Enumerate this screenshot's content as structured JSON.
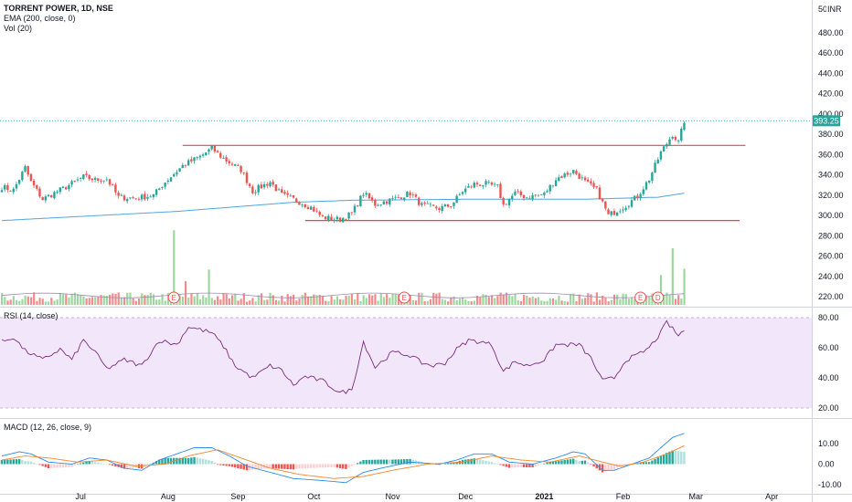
{
  "header": {
    "symbol_title": "TORRENT POWER, 1D, NSE",
    "ema_label": "EMA (200, close, 0)",
    "vol_label": "Vol (20)",
    "currency": "INR"
  },
  "rsi_pane": {
    "label": "RSI (14, close)"
  },
  "macd_pane": {
    "label": "MACD (12, 26, close, 9)"
  },
  "colors": {
    "up": "#26a69a",
    "down": "#ef5350",
    "vol_up": "#9fd6a0",
    "vol_down": "#f08c8c",
    "ema": "#4ea5e0",
    "support_resistance": "#e0475f",
    "rsi_line": "#7b2d7e",
    "rsi_band": "#f2e6fb",
    "macd_line": "#2e8be6",
    "signal_line": "#f4872b",
    "hist_up_strong": "#26a69a",
    "hist_up_weak": "#b2dfdb",
    "hist_down_strong": "#ef5350",
    "hist_down_weak": "#fccfd1",
    "price_tag": "#26a69a",
    "event_badge": "#ef5350"
  },
  "chart_data": [
    {
      "type": "candlestick",
      "title": "TORRENT POWER, 1D, NSE",
      "x_ticks": [
        "Jul",
        "Aug",
        "Sep",
        "Oct",
        "Nov",
        "Dec",
        "2021",
        "Feb",
        "Mar",
        "Apr"
      ],
      "y_ticks": [
        220.0,
        240.0,
        260.0,
        280.0,
        300.0,
        320.0,
        340.0,
        360.0,
        380.0,
        400.0,
        420.0,
        440.0,
        460.0,
        480.0
      ],
      "ylim": [
        212,
        505
      ],
      "last_price": "393.25",
      "close_path": [
        {
          "t": 0,
          "v": 328
        },
        {
          "t": 4,
          "v": 325
        },
        {
          "t": 8,
          "v": 347
        },
        {
          "t": 10,
          "v": 333
        },
        {
          "t": 14,
          "v": 316
        },
        {
          "t": 22,
          "v": 328
        },
        {
          "t": 28,
          "v": 338
        },
        {
          "t": 32,
          "v": 335
        },
        {
          "t": 36,
          "v": 336
        },
        {
          "t": 40,
          "v": 318
        },
        {
          "t": 46,
          "v": 317
        },
        {
          "t": 52,
          "v": 320
        },
        {
          "t": 56,
          "v": 333
        },
        {
          "t": 62,
          "v": 349
        },
        {
          "t": 68,
          "v": 358
        },
        {
          "t": 72,
          "v": 366
        },
        {
          "t": 76,
          "v": 356
        },
        {
          "t": 82,
          "v": 345
        },
        {
          "t": 86,
          "v": 324
        },
        {
          "t": 92,
          "v": 333
        },
        {
          "t": 96,
          "v": 320
        },
        {
          "t": 100,
          "v": 316
        },
        {
          "t": 106,
          "v": 308
        },
        {
          "t": 110,
          "v": 298
        },
        {
          "t": 116,
          "v": 296
        },
        {
          "t": 120,
          "v": 302
        },
        {
          "t": 124,
          "v": 322
        },
        {
          "t": 128,
          "v": 311
        },
        {
          "t": 134,
          "v": 316
        },
        {
          "t": 140,
          "v": 322
        },
        {
          "t": 144,
          "v": 310
        },
        {
          "t": 150,
          "v": 307
        },
        {
          "t": 154,
          "v": 310
        },
        {
          "t": 158,
          "v": 324
        },
        {
          "t": 162,
          "v": 331
        },
        {
          "t": 166,
          "v": 331
        },
        {
          "t": 170,
          "v": 328
        },
        {
          "t": 172,
          "v": 310
        },
        {
          "t": 176,
          "v": 322
        },
        {
          "t": 180,
          "v": 318
        },
        {
          "t": 186,
          "v": 321
        },
        {
          "t": 190,
          "v": 336
        },
        {
          "t": 196,
          "v": 344
        },
        {
          "t": 200,
          "v": 333
        },
        {
          "t": 204,
          "v": 325
        },
        {
          "t": 208,
          "v": 300
        },
        {
          "t": 214,
          "v": 310
        },
        {
          "t": 218,
          "v": 319
        },
        {
          "t": 222,
          "v": 336
        },
        {
          "t": 226,
          "v": 362
        },
        {
          "t": 230,
          "v": 380
        },
        {
          "t": 232,
          "v": 372
        },
        {
          "t": 234,
          "v": 393.25
        }
      ],
      "ema200_path": [
        {
          "t": 0,
          "v": 295
        },
        {
          "t": 60,
          "v": 304
        },
        {
          "t": 100,
          "v": 313
        },
        {
          "t": 120,
          "v": 315
        },
        {
          "t": 160,
          "v": 316
        },
        {
          "t": 200,
          "v": 316
        },
        {
          "t": 225,
          "v": 318
        },
        {
          "t": 234,
          "v": 322
        }
      ],
      "horizontal_levels": [
        {
          "value": 369,
          "t_from": 62,
          "t_to": 255
        },
        {
          "value": 295,
          "t_from": 104,
          "t_to": 253
        }
      ],
      "volume": {
        "spikes": [
          {
            "t": 59,
            "scale": 0.95
          },
          {
            "t": 230,
            "scale": 0.72
          },
          {
            "t": 226,
            "scale": 0.38
          },
          {
            "t": 234,
            "scale": 0.46
          },
          {
            "t": 71,
            "scale": 0.45
          },
          {
            "t": 63,
            "scale": 0.3
          }
        ]
      },
      "events": [
        {
          "t": 59,
          "label": "E"
        },
        {
          "t": 138,
          "label": "E"
        },
        {
          "t": 219,
          "label": "E"
        },
        {
          "t": 225,
          "label": "D"
        }
      ]
    },
    {
      "type": "line",
      "title": "RSI (14, close)",
      "y_ticks": [
        20.0,
        40.0,
        60.0,
        80.0
      ],
      "ylim": [
        20,
        80
      ],
      "band": [
        20,
        80
      ],
      "series": [
        {
          "path": [
            {
              "t": 0,
              "v": 64
            },
            {
              "t": 4,
              "v": 67
            },
            {
              "t": 8,
              "v": 58
            },
            {
              "t": 14,
              "v": 52
            },
            {
              "t": 20,
              "v": 59
            },
            {
              "t": 24,
              "v": 52
            },
            {
              "t": 28,
              "v": 65
            },
            {
              "t": 32,
              "v": 57
            },
            {
              "t": 36,
              "v": 46
            },
            {
              "t": 42,
              "v": 52
            },
            {
              "t": 48,
              "v": 48
            },
            {
              "t": 54,
              "v": 65
            },
            {
              "t": 60,
              "v": 62
            },
            {
              "t": 64,
              "v": 74
            },
            {
              "t": 68,
              "v": 72
            },
            {
              "t": 72,
              "v": 70
            },
            {
              "t": 76,
              "v": 61
            },
            {
              "t": 80,
              "v": 48
            },
            {
              "t": 86,
              "v": 40
            },
            {
              "t": 92,
              "v": 48
            },
            {
              "t": 96,
              "v": 45
            },
            {
              "t": 100,
              "v": 35
            },
            {
              "t": 104,
              "v": 41
            },
            {
              "t": 110,
              "v": 38
            },
            {
              "t": 116,
              "v": 30
            },
            {
              "t": 120,
              "v": 32
            },
            {
              "t": 124,
              "v": 64
            },
            {
              "t": 128,
              "v": 47
            },
            {
              "t": 134,
              "v": 57
            },
            {
              "t": 140,
              "v": 55
            },
            {
              "t": 144,
              "v": 50
            },
            {
              "t": 148,
              "v": 48
            },
            {
              "t": 152,
              "v": 50
            },
            {
              "t": 156,
              "v": 59
            },
            {
              "t": 160,
              "v": 65
            },
            {
              "t": 164,
              "v": 64
            },
            {
              "t": 168,
              "v": 62
            },
            {
              "t": 172,
              "v": 44
            },
            {
              "t": 176,
              "v": 51
            },
            {
              "t": 180,
              "v": 48
            },
            {
              "t": 186,
              "v": 52
            },
            {
              "t": 190,
              "v": 62
            },
            {
              "t": 194,
              "v": 62
            },
            {
              "t": 198,
              "v": 62
            },
            {
              "t": 202,
              "v": 53
            },
            {
              "t": 206,
              "v": 38
            },
            {
              "t": 210,
              "v": 40
            },
            {
              "t": 214,
              "v": 52
            },
            {
              "t": 218,
              "v": 55
            },
            {
              "t": 222,
              "v": 60
            },
            {
              "t": 226,
              "v": 70
            },
            {
              "t": 228,
              "v": 77
            },
            {
              "t": 232,
              "v": 68
            },
            {
              "t": 234,
              "v": 72
            }
          ]
        }
      ]
    },
    {
      "type": "line",
      "title": "MACD (12, 26, close, 9)",
      "y_ticks": [
        -10.0,
        0.0,
        10.0
      ],
      "ylim": [
        -14,
        18
      ],
      "series": [
        {
          "path": [
            {
              "t": 0,
              "v": 4
            },
            {
              "t": 6,
              "v": 6
            },
            {
              "t": 10,
              "v": 5
            },
            {
              "t": 16,
              "v": 1
            },
            {
              "t": 24,
              "v": 0
            },
            {
              "t": 30,
              "v": 3
            },
            {
              "t": 36,
              "v": 2
            },
            {
              "t": 42,
              "v": -2
            },
            {
              "t": 48,
              "v": -3
            },
            {
              "t": 54,
              "v": 2
            },
            {
              "t": 60,
              "v": 5
            },
            {
              "t": 66,
              "v": 8
            },
            {
              "t": 72,
              "v": 8
            },
            {
              "t": 78,
              "v": 4
            },
            {
              "t": 84,
              "v": -1
            },
            {
              "t": 92,
              "v": -4
            },
            {
              "t": 100,
              "v": -7
            },
            {
              "t": 110,
              "v": -8
            },
            {
              "t": 118,
              "v": -9
            },
            {
              "t": 124,
              "v": -4
            },
            {
              "t": 130,
              "v": -2
            },
            {
              "t": 140,
              "v": 1
            },
            {
              "t": 150,
              "v": 0
            },
            {
              "t": 156,
              "v": 2
            },
            {
              "t": 162,
              "v": 5
            },
            {
              "t": 168,
              "v": 5
            },
            {
              "t": 174,
              "v": 1
            },
            {
              "t": 182,
              "v": 0
            },
            {
              "t": 190,
              "v": 3
            },
            {
              "t": 196,
              "v": 6
            },
            {
              "t": 200,
              "v": 5
            },
            {
              "t": 206,
              "v": -3
            },
            {
              "t": 210,
              "v": -3
            },
            {
              "t": 216,
              "v": 0
            },
            {
              "t": 222,
              "v": 3
            },
            {
              "t": 226,
              "v": 8
            },
            {
              "t": 230,
              "v": 13
            },
            {
              "t": 234,
              "v": 15
            }
          ]
        },
        {
          "path": [
            {
              "t": 0,
              "v": 2
            },
            {
              "t": 8,
              "v": 4
            },
            {
              "t": 16,
              "v": 3
            },
            {
              "t": 26,
              "v": 1
            },
            {
              "t": 36,
              "v": 2
            },
            {
              "t": 46,
              "v": -1
            },
            {
              "t": 56,
              "v": 0
            },
            {
              "t": 64,
              "v": 4
            },
            {
              "t": 74,
              "v": 7
            },
            {
              "t": 82,
              "v": 3
            },
            {
              "t": 92,
              "v": -2
            },
            {
              "t": 102,
              "v": -5
            },
            {
              "t": 114,
              "v": -7
            },
            {
              "t": 124,
              "v": -6
            },
            {
              "t": 134,
              "v": -3
            },
            {
              "t": 146,
              "v": 0
            },
            {
              "t": 158,
              "v": 1
            },
            {
              "t": 168,
              "v": 4
            },
            {
              "t": 178,
              "v": 2
            },
            {
              "t": 188,
              "v": 1
            },
            {
              "t": 198,
              "v": 4
            },
            {
              "t": 206,
              "v": 1
            },
            {
              "t": 212,
              "v": -1
            },
            {
              "t": 220,
              "v": 1
            },
            {
              "t": 228,
              "v": 5
            },
            {
              "t": 234,
              "v": 9
            }
          ]
        }
      ]
    }
  ]
}
